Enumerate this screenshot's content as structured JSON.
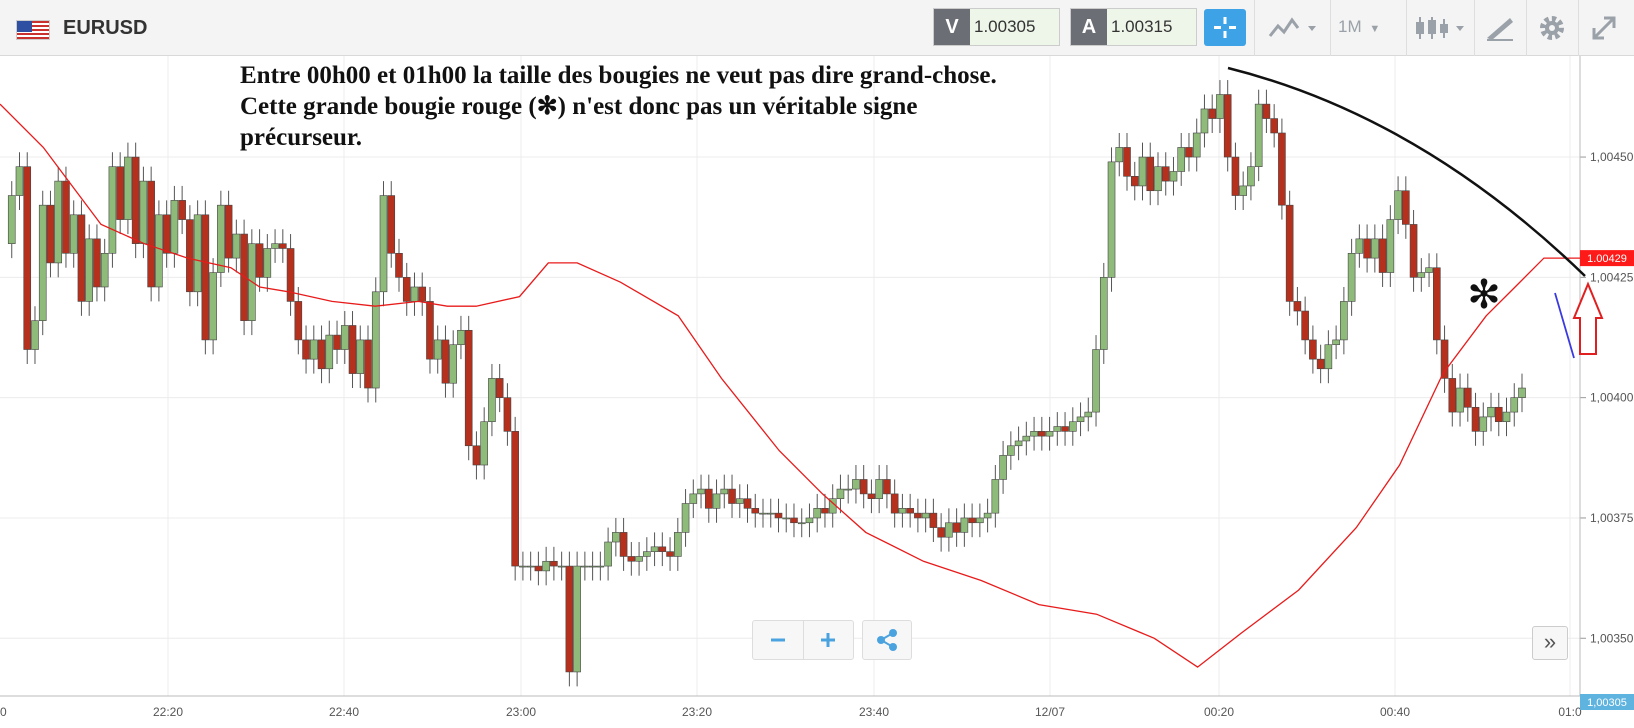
{
  "instrument": {
    "symbol": "EURUSD",
    "flag_icon": "eu-us-flag-icon"
  },
  "quotes": {
    "sell_label": "V",
    "sell_value": "1.00305",
    "buy_label": "A",
    "buy_value": "1.00315"
  },
  "toolbar": {
    "crosshair_icon": "crosshair-icon",
    "chart_type_icon": "line-chart-icon",
    "timeframe": "1M",
    "candle_icon": "candlestick-icon",
    "draw_icon": "drawing-tools-icon",
    "settings_icon": "gear-icon",
    "fullscreen_icon": "expand-icon"
  },
  "annotation": {
    "text": "Entre 00h00 et 01h00 la taille des bougies ne veut pas dire grand-chose. Cette grande bougie rouge (✻) n'est donc pas un véritable signe précurseur.",
    "marker": "✻"
  },
  "chart_data": {
    "type": "candlestick",
    "xlabel": "",
    "ylabel": "",
    "x_ticks": [
      "22:20",
      "22:40",
      "23:00",
      "23:20",
      "23:40",
      "12/07",
      "00:20",
      "00:40",
      "01:0"
    ],
    "y_ticks": [
      "1,00450",
      "1,00425",
      "1,00400",
      "1,00375",
      "1,00350"
    ],
    "ylim": [
      1.00338,
      1.00471
    ],
    "current_price": "1,00305",
    "ma_value": "1.00429",
    "colors": {
      "up": "#8fbb7a",
      "down": "#b5311e",
      "ma": "#e81b1b",
      "ma_badge": "#ff1a1a",
      "price_badge": "#5fb3df"
    },
    "ma_series": [
      1.00461,
      1.00452,
      1.00444,
      1.00436,
      1.00432,
      1.00429,
      1.00427,
      1.00423,
      1.00422,
      1.0042,
      1.00419,
      1.0042,
      1.00419,
      1.00419,
      1.00421,
      1.00428,
      1.00428,
      1.00424,
      1.00417,
      1.00404,
      1.00389,
      1.0038,
      1.00372,
      1.00366,
      1.00362,
      1.00357,
      1.00355,
      1.0035,
      1.00344,
      1.00351,
      1.0036,
      1.00373,
      1.00386,
      1.00405,
      1.00417,
      1.00423,
      1.00429,
      1.00429
    ],
    "ma_x": [
      0,
      30,
      50,
      70,
      100,
      130,
      160,
      180,
      200,
      230,
      260,
      290,
      310,
      330,
      360,
      380,
      400,
      430,
      470,
      500,
      540,
      570,
      600,
      640,
      680,
      720,
      760,
      800,
      830,
      860,
      900,
      940,
      970,
      1000,
      1030,
      1050,
      1070,
      1095
    ],
    "annotations": [
      {
        "type": "trendline",
        "color": "#111111",
        "label": ""
      },
      {
        "type": "trendline",
        "color": "#3a3ae0",
        "label": ""
      },
      {
        "type": "arrow-up",
        "color": "#e02020",
        "label": ""
      }
    ]
  }
}
